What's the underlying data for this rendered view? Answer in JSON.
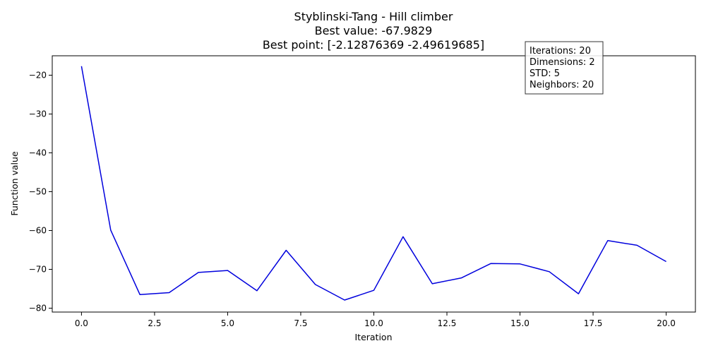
{
  "chart_data": {
    "type": "line",
    "title": [
      "Styblinski-Tang - Hill climber",
      "Best value: -67.9829",
      "Best point: [-2.12876369 -2.49619685]"
    ],
    "xlabel": "Iteration",
    "ylabel": "Function value",
    "xlim": [
      -1,
      21
    ],
    "ylim": [
      -81,
      -15
    ],
    "xticks": [
      0,
      2.5,
      5,
      7.5,
      10,
      12.5,
      15,
      17.5,
      20
    ],
    "xtick_labels": [
      "0.0",
      "2.5",
      "5.0",
      "7.5",
      "10.0",
      "12.5",
      "15.0",
      "17.5",
      "20.0"
    ],
    "yticks": [
      -20,
      -30,
      -40,
      -50,
      -60,
      -70,
      -80
    ],
    "ytick_labels": [
      "−20",
      "−30",
      "−40",
      "−50",
      "−60",
      "−70",
      "−80"
    ],
    "grid": false,
    "series": [
      {
        "color": "#0000dd",
        "x": [
          0,
          1,
          2,
          3,
          4,
          5,
          6,
          7,
          8,
          9,
          10,
          11,
          12,
          13,
          14,
          15,
          16,
          17,
          18,
          19,
          20
        ],
        "y": [
          -17.7,
          -59.9,
          -76.5,
          -76.0,
          -70.8,
          -70.3,
          -75.5,
          -65.1,
          -73.9,
          -77.9,
          -75.4,
          -61.6,
          -73.7,
          -72.2,
          -68.5,
          -68.6,
          -70.6,
          -76.3,
          -62.6,
          -63.8,
          -68.0
        ]
      }
    ],
    "annotation": {
      "lines": [
        "Iterations: 20",
        "Dimensions: 2",
        "STD: 5",
        "Neighbors: 20"
      ]
    }
  }
}
